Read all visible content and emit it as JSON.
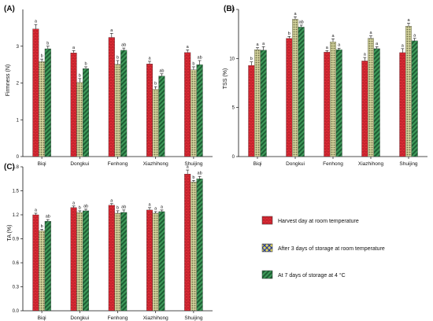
{
  "colors": {
    "series": [
      "#e8323c",
      "#c9cb95",
      "#3f9a5a"
    ],
    "axis": "#111111"
  },
  "legend": {
    "items": [
      "Harvest day at room temperature",
      "After 3 days of storage at room temperature",
      "At 7 days of storage at 4 °C"
    ]
  },
  "chart_data": [
    {
      "panel": "(A)",
      "type": "bar",
      "ylabel": "Firmness (N)",
      "ylim": [
        0,
        4
      ],
      "yticks": [
        0,
        1,
        2,
        3
      ],
      "categories": [
        "Biqi",
        "Dongkui",
        "Fenhong",
        "Xiazhihong",
        "Shuijing"
      ],
      "series": [
        {
          "values": [
            3.47,
            2.82,
            3.24,
            2.52,
            2.83
          ],
          "errors": [
            0.12,
            0.06,
            0.11,
            0.07,
            0.07
          ],
          "letters": [
            "a",
            "a",
            "a",
            "a",
            "a"
          ]
        },
        {
          "values": [
            2.58,
            2.02,
            2.51,
            1.83,
            2.36
          ],
          "errors": [
            0.07,
            0.1,
            0.1,
            0.07,
            0.08
          ],
          "letters": [
            "b",
            "b",
            "b",
            "b",
            "b"
          ]
        },
        {
          "values": [
            2.93,
            2.39,
            2.89,
            2.19,
            2.5
          ],
          "errors": [
            0.07,
            0.05,
            0.06,
            0.06,
            0.11
          ],
          "letters": [
            "b",
            "b",
            "ab",
            "ab",
            "ab"
          ]
        }
      ]
    },
    {
      "panel": "(B)",
      "type": "bar",
      "ylabel": "TSS (%)",
      "ylim": [
        0,
        15
      ],
      "yticks": [
        0,
        5,
        10,
        15
      ],
      "categories": [
        "Biqi",
        "Dongkui",
        "Fenhong",
        "Xiazhihong",
        "Shuijing"
      ],
      "series": [
        {
          "values": [
            9.3,
            12.05,
            10.65,
            9.75,
            10.6
          ],
          "errors": [
            0.35,
            0.2,
            0.15,
            0.35,
            0.4
          ],
          "letters": [
            "b",
            "b",
            "a",
            "a",
            "a"
          ]
        },
        {
          "values": [
            10.9,
            14.0,
            11.7,
            12.05,
            13.3
          ],
          "errors": [
            0.2,
            0.25,
            0.3,
            0.25,
            0.3
          ],
          "letters": [
            "a",
            "a",
            "a",
            "a",
            "a"
          ]
        },
        {
          "values": [
            10.85,
            13.2,
            10.9,
            11.0,
            11.8
          ],
          "errors": [
            0.35,
            0.2,
            0.15,
            0.2,
            0.25
          ],
          "letters": [
            "a",
            "ab",
            "a",
            "a",
            "a"
          ]
        }
      ]
    },
    {
      "panel": "(C)",
      "type": "bar",
      "ylabel": "TA (%)",
      "ylim": [
        0,
        1.8
      ],
      "yticks": [
        0.0,
        0.3,
        0.6,
        0.9,
        1.2,
        1.5,
        1.8
      ],
      "categories": [
        "Biqi",
        "Dongkui",
        "Fenhong",
        "Xiazhihong",
        "Shuijing"
      ],
      "series": [
        {
          "values": [
            1.2,
            1.29,
            1.32,
            1.26,
            1.71
          ],
          "errors": [
            0.02,
            0.02,
            0.02,
            0.03,
            0.05
          ],
          "letters": [
            "a",
            "a",
            "a",
            "a",
            "a"
          ]
        },
        {
          "values": [
            1.0,
            1.23,
            1.22,
            1.22,
            1.61
          ],
          "errors": [
            0.02,
            0.02,
            0.03,
            0.02,
            0.02
          ],
          "letters": [
            "b",
            "b",
            "b",
            "a",
            "b"
          ]
        },
        {
          "values": [
            1.12,
            1.25,
            1.23,
            1.24,
            1.65
          ],
          "errors": [
            0.02,
            0.02,
            0.03,
            0.02,
            0.03
          ],
          "letters": [
            "ab",
            "ab",
            "ab",
            "a",
            "ab"
          ]
        }
      ]
    }
  ]
}
